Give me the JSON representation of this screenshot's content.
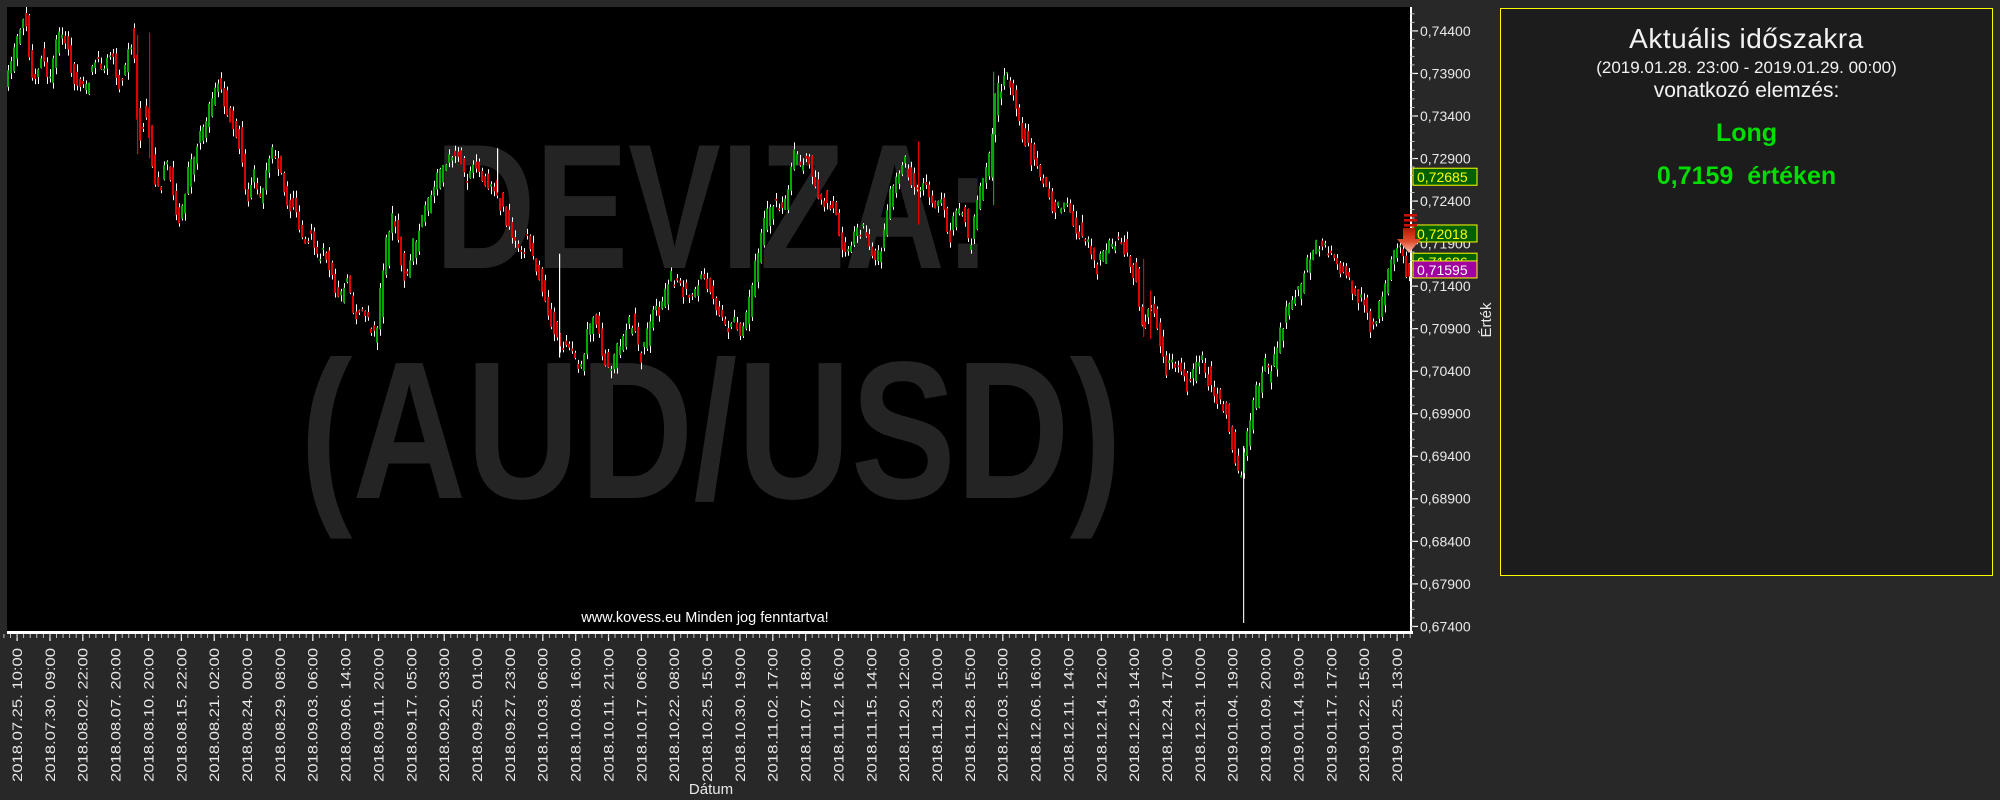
{
  "page": {
    "background": "#282828"
  },
  "watermark": {
    "line1": "DEVIZA:",
    "line2": "(AUD/USD)",
    "copyright": "www.kovess.eu Minden jog fenntartva!",
    "color": "#242424"
  },
  "panel": {
    "title": "Aktuális időszakra",
    "period": "(2019.01.28. 23:00 - 2019.01.29. 00:00)",
    "subtitle": "vonatkozó elemzés:",
    "signal": "Long",
    "price_line": "0,7159  értéken",
    "signal_color": "#00dd00",
    "border_color": "#ffff00"
  },
  "chart_data": {
    "type": "candlestick",
    "symbol": "AUD/USD",
    "xlabel": "Dátum",
    "ylabel": "Érték",
    "colors": {
      "up": "#00a800",
      "down": "#e00000",
      "wick": "#ffffff",
      "axis": "#ffffff",
      "tick_text": "#e8e8e8"
    },
    "ylim": [
      0.6731,
      0.7468
    ],
    "y_ticks": [
      {
        "label": "0,74400",
        "value": 0.744
      },
      {
        "label": "0,73900",
        "value": 0.739
      },
      {
        "label": "0,73400",
        "value": 0.734
      },
      {
        "label": "0,72900",
        "value": 0.729
      },
      {
        "label": "0,72400",
        "value": 0.724
      },
      {
        "label": "0,71900",
        "value": 0.719
      },
      {
        "label": "0,71400",
        "value": 0.714
      },
      {
        "label": "0,70900",
        "value": 0.709
      },
      {
        "label": "0,70400",
        "value": 0.704
      },
      {
        "label": "0,69900",
        "value": 0.699
      },
      {
        "label": "0,69400",
        "value": 0.694
      },
      {
        "label": "0,68900",
        "value": 0.689
      },
      {
        "label": "0,68400",
        "value": 0.684
      },
      {
        "label": "0,67900",
        "value": 0.679
      },
      {
        "label": "0,67400",
        "value": 0.674
      }
    ],
    "x_ticks": [
      "2018.07.25. 10:00",
      "2018.07.30. 09:00",
      "2018.08.02. 22:00",
      "2018.08.07. 20:00",
      "2018.08.10. 20:00",
      "2018.08.15. 22:00",
      "2018.08.21. 02:00",
      "2018.08.24. 00:00",
      "2018.08.29. 08:00",
      "2018.09.03. 06:00",
      "2018.09.06. 14:00",
      "2018.09.11. 20:00",
      "2018.09.17. 05:00",
      "2018.09.20. 03:00",
      "2018.09.25. 01:00",
      "2018.09.27. 23:00",
      "2018.10.03. 06:00",
      "2018.10.08. 16:00",
      "2018.10.11. 21:00",
      "2018.10.17. 06:00",
      "2018.10.22. 08:00",
      "2018.10.25. 15:00",
      "2018.10.30. 19:00",
      "2018.11.02. 17:00",
      "2018.11.07. 18:00",
      "2018.11.12. 16:00",
      "2018.11.15. 14:00",
      "2018.11.20. 12:00",
      "2018.11.23. 10:00",
      "2018.11.28. 15:00",
      "2018.12.03. 15:00",
      "2018.12.06. 16:00",
      "2018.12.11. 14:00",
      "2018.12.14. 12:00",
      "2018.12.19. 14:00",
      "2018.12.24. 17:00",
      "2018.12.31. 10:00",
      "2019.01.04. 19:00",
      "2019.01.09. 20:00",
      "2019.01.14. 19:00",
      "2019.01.17. 17:00",
      "2019.01.22. 15:00",
      "2019.01.25. 13:00"
    ],
    "price_labels": [
      {
        "text": "0,72685",
        "value": 0.72685,
        "bg": "#006000",
        "fg": "#ffff00"
      },
      {
        "text": "0,72018",
        "value": 0.72018,
        "bg": "#006000",
        "fg": "#ffff00"
      },
      {
        "text": "0,71686",
        "value": 0.71686,
        "bg": "#006000",
        "fg": "#ffff00"
      },
      {
        "text": "0,71595",
        "value": 0.71595,
        "bg": "#a000a0",
        "fg": "#ffffff"
      }
    ],
    "price_path": [
      [
        8,
        0.739
      ],
      [
        14,
        0.741
      ],
      [
        25,
        0.7458
      ],
      [
        35,
        0.7385
      ],
      [
        43,
        0.7412
      ],
      [
        50,
        0.7375
      ],
      [
        62,
        0.7442
      ],
      [
        70,
        0.741
      ],
      [
        78,
        0.7372
      ],
      [
        88,
        0.7378
      ],
      [
        97,
        0.7405
      ],
      [
        105,
        0.7392
      ],
      [
        112,
        0.7415
      ],
      [
        120,
        0.7375
      ],
      [
        128,
        0.7398
      ],
      [
        133,
        0.7435
      ],
      [
        140,
        0.733
      ],
      [
        148,
        0.734
      ],
      [
        152,
        0.7295
      ],
      [
        160,
        0.725
      ],
      [
        167,
        0.7285
      ],
      [
        174,
        0.7255
      ],
      [
        181,
        0.7218
      ],
      [
        190,
        0.727
      ],
      [
        197,
        0.73
      ],
      [
        205,
        0.732
      ],
      [
        213,
        0.7355
      ],
      [
        221,
        0.738
      ],
      [
        228,
        0.735
      ],
      [
        235,
        0.733
      ],
      [
        242,
        0.73
      ],
      [
        248,
        0.724
      ],
      [
        255,
        0.727
      ],
      [
        262,
        0.7245
      ],
      [
        268,
        0.728
      ],
      [
        275,
        0.73
      ],
      [
        282,
        0.7275
      ],
      [
        290,
        0.724
      ],
      [
        297,
        0.7225
      ],
      [
        305,
        0.719
      ],
      [
        312,
        0.72
      ],
      [
        318,
        0.717
      ],
      [
        325,
        0.718
      ],
      [
        332,
        0.7155
      ],
      [
        340,
        0.7125
      ],
      [
        348,
        0.7145
      ],
      [
        355,
        0.711
      ],
      [
        363,
        0.7108
      ],
      [
        370,
        0.7095
      ],
      [
        377,
        0.708
      ],
      [
        385,
        0.716
      ],
      [
        393,
        0.7222
      ],
      [
        400,
        0.7195
      ],
      [
        408,
        0.7145
      ],
      [
        415,
        0.7185
      ],
      [
        422,
        0.721
      ],
      [
        430,
        0.724
      ],
      [
        440,
        0.7268
      ],
      [
        448,
        0.7288
      ],
      [
        455,
        0.7297
      ],
      [
        462,
        0.728
      ],
      [
        468,
        0.7262
      ],
      [
        475,
        0.729
      ],
      [
        483,
        0.727
      ],
      [
        490,
        0.7255
      ],
      [
        497,
        0.7255
      ],
      [
        505,
        0.7225
      ],
      [
        512,
        0.72
      ],
      [
        520,
        0.7182
      ],
      [
        528,
        0.7192
      ],
      [
        535,
        0.717
      ],
      [
        542,
        0.7148
      ],
      [
        550,
        0.7108
      ],
      [
        558,
        0.7075
      ],
      [
        565,
        0.707
      ],
      [
        572,
        0.7065
      ],
      [
        578,
        0.705
      ],
      [
        583,
        0.7045
      ],
      [
        590,
        0.7085
      ],
      [
        598,
        0.7098
      ],
      [
        604,
        0.7055
      ],
      [
        612,
        0.704
      ],
      [
        618,
        0.7065
      ],
      [
        628,
        0.709
      ],
      [
        635,
        0.71
      ],
      [
        641,
        0.706
      ],
      [
        648,
        0.7078
      ],
      [
        655,
        0.7115
      ],
      [
        663,
        0.7108
      ],
      [
        670,
        0.7148
      ],
      [
        678,
        0.7153
      ],
      [
        685,
        0.7135
      ],
      [
        693,
        0.7128
      ],
      [
        700,
        0.715
      ],
      [
        706,
        0.7148
      ],
      [
        713,
        0.713
      ],
      [
        720,
        0.711
      ],
      [
        728,
        0.7092
      ],
      [
        735,
        0.71
      ],
      [
        742,
        0.7085
      ],
      [
        750,
        0.711
      ],
      [
        757,
        0.7158
      ],
      [
        763,
        0.7195
      ],
      [
        770,
        0.7225
      ],
      [
        776,
        0.7245
      ],
      [
        782,
        0.723
      ],
      [
        788,
        0.7248
      ],
      [
        795,
        0.729
      ],
      [
        802,
        0.7282
      ],
      [
        808,
        0.729
      ],
      [
        815,
        0.7265
      ],
      [
        822,
        0.7248
      ],
      [
        830,
        0.724
      ],
      [
        837,
        0.7222
      ],
      [
        843,
        0.719
      ],
      [
        849,
        0.718
      ],
      [
        855,
        0.72
      ],
      [
        861,
        0.721
      ],
      [
        868,
        0.7195
      ],
      [
        874,
        0.7172
      ],
      [
        881,
        0.7178
      ],
      [
        888,
        0.7215
      ],
      [
        895,
        0.7262
      ],
      [
        901,
        0.7275
      ],
      [
        906,
        0.7285
      ],
      [
        912,
        0.7262
      ],
      [
        918,
        0.725
      ],
      [
        925,
        0.7262
      ],
      [
        931,
        0.7245
      ],
      [
        937,
        0.7238
      ],
      [
        943,
        0.7245
      ],
      [
        950,
        0.7205
      ],
      [
        957,
        0.7225
      ],
      [
        964,
        0.7235
      ],
      [
        971,
        0.7192
      ],
      [
        978,
        0.7235
      ],
      [
        985,
        0.727
      ],
      [
        991,
        0.7282
      ],
      [
        996,
        0.7355
      ],
      [
        1001,
        0.7365
      ],
      [
        1007,
        0.739
      ],
      [
        1012,
        0.737
      ],
      [
        1017,
        0.735
      ],
      [
        1023,
        0.733
      ],
      [
        1029,
        0.7308
      ],
      [
        1035,
        0.7288
      ],
      [
        1041,
        0.727
      ],
      [
        1047,
        0.7262
      ],
      [
        1053,
        0.7238
      ],
      [
        1060,
        0.7228
      ],
      [
        1066,
        0.7238
      ],
      [
        1072,
        0.7222
      ],
      [
        1079,
        0.7206
      ],
      [
        1086,
        0.7196
      ],
      [
        1093,
        0.7188
      ],
      [
        1097,
        0.7165
      ],
      [
        1102,
        0.7172
      ],
      [
        1108,
        0.7185
      ],
      [
        1114,
        0.719
      ],
      [
        1120,
        0.7198
      ],
      [
        1126,
        0.7185
      ],
      [
        1132,
        0.716
      ],
      [
        1138,
        0.7145
      ],
      [
        1143,
        0.7095
      ],
      [
        1148,
        0.711
      ],
      [
        1153,
        0.7115
      ],
      [
        1159,
        0.7092
      ],
      [
        1165,
        0.705
      ],
      [
        1170,
        0.7048
      ],
      [
        1176,
        0.7055
      ],
      [
        1181,
        0.7048
      ],
      [
        1186,
        0.7035
      ],
      [
        1191,
        0.7022
      ],
      [
        1196,
        0.704
      ],
      [
        1201,
        0.7056
      ],
      [
        1206,
        0.7046
      ],
      [
        1211,
        0.7028
      ],
      [
        1216,
        0.7013
      ],
      [
        1221,
        0.7005
      ],
      [
        1226,
        0.6998
      ],
      [
        1230,
        0.6975
      ],
      [
        1234,
        0.695
      ],
      [
        1238,
        0.693
      ],
      [
        1242,
        0.692
      ],
      [
        1246,
        0.694
      ],
      [
        1250,
        0.6968
      ],
      [
        1255,
        0.7
      ],
      [
        1259,
        0.7013
      ],
      [
        1263,
        0.7036
      ],
      [
        1268,
        0.7045
      ],
      [
        1272,
        0.7036
      ],
      [
        1277,
        0.7057
      ],
      [
        1282,
        0.7082
      ],
      [
        1287,
        0.71
      ],
      [
        1292,
        0.712
      ],
      [
        1297,
        0.7133
      ],
      [
        1302,
        0.7143
      ],
      [
        1307,
        0.7158
      ],
      [
        1312,
        0.717
      ],
      [
        1317,
        0.7183
      ],
      [
        1322,
        0.719
      ],
      [
        1327,
        0.7178
      ],
      [
        1332,
        0.7188
      ],
      [
        1337,
        0.717
      ],
      [
        1342,
        0.7163
      ],
      [
        1347,
        0.7153
      ],
      [
        1352,
        0.7145
      ],
      [
        1357,
        0.7133
      ],
      [
        1362,
        0.7121
      ],
      [
        1366,
        0.7128
      ],
      [
        1370,
        0.71
      ],
      [
        1375,
        0.7095
      ],
      [
        1380,
        0.711
      ],
      [
        1385,
        0.7133
      ],
      [
        1390,
        0.7158
      ],
      [
        1395,
        0.7178
      ],
      [
        1400,
        0.719
      ],
      [
        1404,
        0.718
      ],
      [
        1408,
        0.716
      ]
    ],
    "spikes": [
      {
        "x": 137,
        "from": 0.7435,
        "to": 0.7295,
        "color": "#dd0000"
      },
      {
        "x": 149,
        "from": 0.7438,
        "to": 0.729,
        "color": "#dd0000"
      },
      {
        "x": 497,
        "from": 0.7302,
        "to": 0.725,
        "color": "#ffffff"
      },
      {
        "x": 559,
        "from": 0.7178,
        "to": 0.7056,
        "color": "#ffffff"
      },
      {
        "x": 918,
        "from": 0.731,
        "to": 0.7212,
        "color": "#dd0000"
      },
      {
        "x": 993,
        "from": 0.7392,
        "to": 0.7235,
        "color": "#00a800"
      },
      {
        "x": 1143,
        "from": 0.7172,
        "to": 0.708,
        "color": "#dd0000"
      },
      {
        "x": 1150,
        "from": 0.7135,
        "to": 0.7078,
        "color": "#dd0000"
      },
      {
        "x": 1243,
        "from": 0.6952,
        "to": 0.6744,
        "color": "#e8e8e8"
      }
    ],
    "marker": {
      "type": "down-arrow",
      "value": 0.716,
      "color": "#cc2200"
    }
  }
}
